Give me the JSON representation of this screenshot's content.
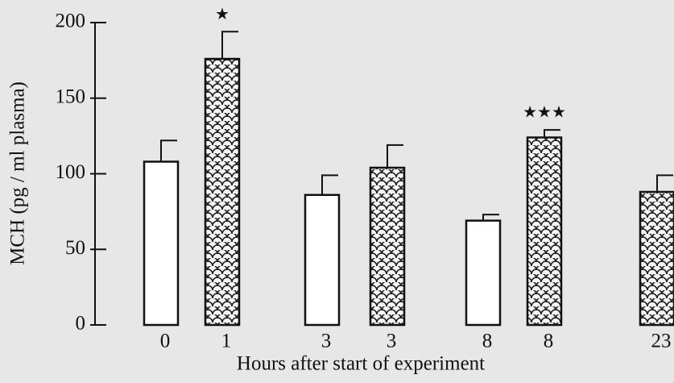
{
  "chart_data": {
    "type": "bar",
    "y_label": "MCH (pg / ml plasma)",
    "x_label": "Hours after start of experiment",
    "categories": [
      "0",
      "1",
      "3",
      "3",
      "8",
      "8",
      "23"
    ],
    "values": [
      108,
      176,
      86,
      104,
      69,
      124,
      88
    ],
    "errors": [
      14,
      18,
      13,
      15,
      4,
      5,
      11
    ],
    "fills": [
      "white",
      "scales",
      "white",
      "scales",
      "white",
      "scales",
      "scales"
    ],
    "significance": [
      null,
      "★",
      null,
      null,
      null,
      "★★★",
      null
    ],
    "ylim": [
      0,
      200
    ],
    "yticks": [
      0,
      50,
      100,
      150,
      200
    ]
  }
}
